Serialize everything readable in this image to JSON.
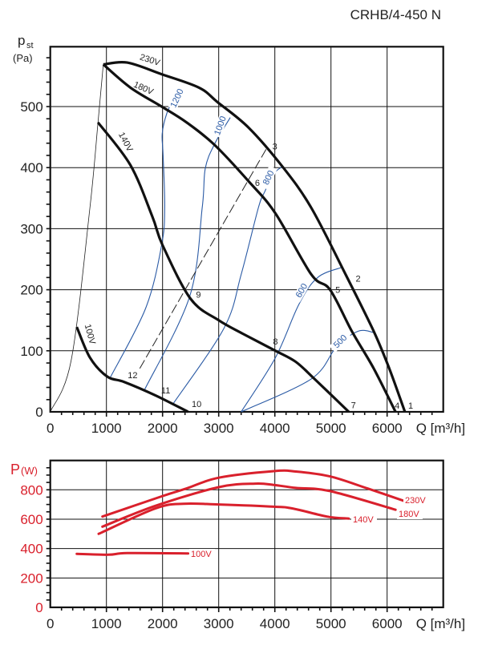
{
  "title": "CRHB/4-450 N",
  "colors": {
    "grid": "#111111",
    "fan": "#111111",
    "rpm": "#2a5aa5",
    "power": "#d9202c",
    "label_red": "#d9202c"
  },
  "chart_data": [
    {
      "type": "line",
      "name": "pressure",
      "ylabel_main": "p",
      "ylabel_sub": "st",
      "ylabel_unit": "(Pa)",
      "xlabel": "Q [m³/h]",
      "xlim": [
        0,
        7000
      ],
      "ylim": [
        0,
        600
      ],
      "xticks": [
        0,
        1000,
        2000,
        3000,
        4000,
        5000,
        6000
      ],
      "xtick_labels": [
        "0",
        "1000",
        "2000",
        "3000",
        "4000",
        "5000",
        "6000"
      ],
      "yticks": [
        0,
        100,
        200,
        300,
        400,
        500
      ],
      "ytick_labels": [
        "0",
        "100",
        "200",
        "300",
        "400",
        "500"
      ],
      "grid": true,
      "series": [
        {
          "name": "230V",
          "label": "230V",
          "label_at": [
            1760,
            572
          ],
          "label_rot": 18,
          "points": [
            [
              944,
              569
            ],
            [
              1372,
              572
            ],
            [
              1983,
              553
            ],
            [
              2650,
              531
            ],
            [
              2983,
              507
            ],
            [
              3539,
              465
            ],
            [
              4150,
              400
            ],
            [
              4650,
              334
            ],
            [
              5261,
              225
            ],
            [
              5761,
              132
            ],
            [
              6039,
              71
            ],
            [
              6317,
              0
            ]
          ]
        },
        {
          "name": "180V",
          "label": "180V",
          "label_at": [
            1640,
            526
          ],
          "label_rot": 24,
          "points": [
            [
              944,
              569
            ],
            [
              1428,
              531
            ],
            [
              1983,
              500
            ],
            [
              2428,
              474
            ],
            [
              2928,
              437
            ],
            [
              3539,
              377
            ],
            [
              4011,
              325
            ],
            [
              4650,
              225
            ],
            [
              4983,
              200
            ],
            [
              5372,
              132
            ],
            [
              5761,
              71
            ],
            [
              6150,
              0
            ]
          ]
        },
        {
          "name": "140V",
          "label": "140V",
          "label_at": [
            1300,
            440
          ],
          "label_rot": 62,
          "points": [
            [
              850,
              474
            ],
            [
              1428,
              404
            ],
            [
              1817,
              320
            ],
            [
              2000,
              273
            ],
            [
              2500,
              185
            ],
            [
              3000,
              150
            ],
            [
              3428,
              128
            ],
            [
              4011,
              100
            ],
            [
              4372,
              82
            ],
            [
              4706,
              54
            ],
            [
              5317,
              0
            ]
          ]
        },
        {
          "name": "100V",
          "label": "100V",
          "label_at": [
            660,
            126
          ],
          "label_rot": 75,
          "points": [
            [
              472,
              139
            ],
            [
              706,
              89
            ],
            [
              1011,
              58
            ],
            [
              1317,
              49
            ],
            [
              1872,
              27
            ],
            [
              2456,
              0
            ]
          ]
        }
      ],
      "system_curve": [
        [
          0,
          0
        ],
        [
          372,
          84
        ],
        [
          706,
          334
        ],
        [
          850,
          474
        ],
        [
          944,
          569
        ]
      ],
      "rpm_curves": [
        {
          "name": "1200",
          "label": "1200",
          "label_at": [
            2250,
            510
          ],
          "label_rot": -65,
          "points": [
            [
              1067,
              56
            ],
            [
              1700,
              170
            ],
            [
              1983,
              273
            ],
            [
              2039,
              334
            ],
            [
              2010,
              420
            ],
            [
              1994,
              456
            ],
            [
              2080,
              490
            ],
            [
              2200,
              512
            ]
          ]
        },
        {
          "name": "1000",
          "label": "1000",
          "label_at": [
            3020,
            465
          ],
          "label_rot": -70,
          "points": [
            [
              1678,
              36
            ],
            [
              2483,
              189
            ],
            [
              2706,
              334
            ],
            [
              2761,
              399
            ],
            [
              2928,
              439
            ],
            [
              3206,
              482
            ]
          ]
        },
        {
          "name": "800",
          "label": "800",
          "label_at": [
            3880,
            380
          ],
          "label_rot": -65,
          "points": [
            [
              2178,
              12
            ],
            [
              3094,
              137
            ],
            [
              3400,
              225
            ],
            [
              3706,
              334
            ],
            [
              3817,
              360
            ],
            [
              3983,
              390
            ],
            [
              4122,
              401
            ]
          ]
        },
        {
          "name": "600",
          "label": "600",
          "label_at": [
            4470,
            195
          ],
          "label_rot": -60,
          "points": [
            [
              3400,
              0
            ],
            [
              4011,
              89
            ],
            [
              4428,
              176
            ],
            [
              4761,
              220
            ],
            [
              5206,
              237
            ]
          ]
        },
        {
          "name": "500",
          "label": "500",
          "label_at": [
            5160,
            112
          ],
          "label_rot": -45,
          "points": [
            [
              3400,
              0
            ],
            [
              4650,
              54
            ],
            [
              5094,
              106
            ],
            [
              5483,
              132
            ],
            [
              5761,
              130
            ]
          ]
        }
      ],
      "dashed_line": [
        [
          1594,
          71
        ],
        [
          3844,
          430
        ]
      ],
      "point_labels": [
        {
          "text": "1",
          "at": [
            6420,
            5
          ]
        },
        {
          "text": "2",
          "at": [
            5483,
            213
          ]
        },
        {
          "text": "3",
          "at": [
            4000,
            430
          ]
        },
        {
          "text": "4",
          "at": [
            6178,
            5
          ]
        },
        {
          "text": "5",
          "at": [
            5122,
            195
          ]
        },
        {
          "text": "6",
          "at": [
            3689,
            370
          ]
        },
        {
          "text": "7",
          "at": [
            5400,
            6
          ]
        },
        {
          "text": "8",
          "at": [
            4011,
            110
          ]
        },
        {
          "text": "9",
          "at": [
            2639,
            187
          ]
        },
        {
          "text": "10",
          "at": [
            2606,
            8
          ]
        },
        {
          "text": "11",
          "at": [
            2056,
            30
          ]
        },
        {
          "text": "12",
          "at": [
            1467,
            55
          ]
        }
      ]
    },
    {
      "type": "line",
      "name": "power",
      "ylabel_main": "P",
      "ylabel_unit": "(W)",
      "xlabel": "Q [m³/h]",
      "xlim": [
        0,
        7000
      ],
      "ylim": [
        0,
        1000
      ],
      "xticks": [
        0,
        1000,
        2000,
        3000,
        4000,
        5000,
        6000
      ],
      "xtick_labels": [
        "0",
        "1000",
        "2000",
        "3000",
        "4000",
        "5000",
        "6000"
      ],
      "yticks": [
        0,
        200,
        400,
        600,
        800
      ],
      "ytick_labels": [
        "0",
        "200",
        "400",
        "600",
        "800"
      ],
      "grid": true,
      "series": [
        {
          "name": "230V",
          "label": "230V",
          "points": [
            [
              928,
              618
            ],
            [
              1983,
              755
            ],
            [
              2428,
              809
            ],
            [
              3000,
              882
            ],
            [
              3983,
              927
            ],
            [
              4372,
              924
            ],
            [
              4983,
              891
            ],
            [
              5650,
              809
            ],
            [
              6317,
              722
            ]
          ]
        },
        {
          "name": "180V",
          "label": "180V",
          "points": [
            [
              928,
              549
            ],
            [
              1872,
              691
            ],
            [
              3000,
              818
            ],
            [
              3650,
              842
            ],
            [
              3983,
              833
            ],
            [
              4372,
              813
            ],
            [
              4983,
              791
            ],
            [
              6150,
              664
            ]
          ]
        },
        {
          "name": "140V",
          "label": "140V",
          "points": [
            [
              861,
              500
            ],
            [
              1872,
              673
            ],
            [
              2372,
              705
            ],
            [
              3000,
              700
            ],
            [
              3983,
              685
            ],
            [
              4317,
              673
            ],
            [
              4928,
              618
            ],
            [
              5317,
              604
            ]
          ]
        },
        {
          "name": "100V",
          "label": "100V",
          "points": [
            [
              472,
              364
            ],
            [
              1039,
              358
            ],
            [
              1372,
              369
            ],
            [
              2456,
              367
            ]
          ]
        }
      ]
    }
  ]
}
